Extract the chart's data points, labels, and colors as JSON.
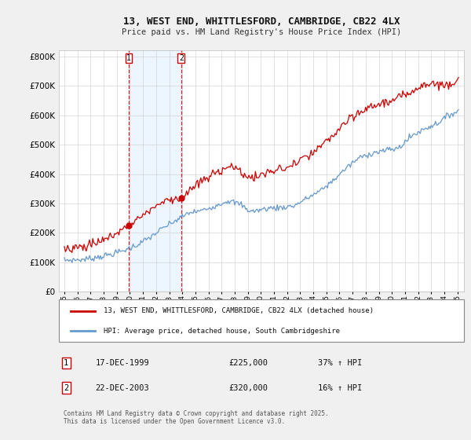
{
  "title": "13, WEST END, WHITTLESFORD, CAMBRIDGE, CB22 4LX",
  "subtitle": "Price paid vs. HM Land Registry's House Price Index (HPI)",
  "ytick_values": [
    0,
    100000,
    200000,
    300000,
    400000,
    500000,
    600000,
    700000,
    800000
  ],
  "ylim": [
    0,
    820000
  ],
  "background_color": "#f0f0f0",
  "plot_bg_color": "#ffffff",
  "red_color": "#cc0000",
  "blue_color": "#6699cc",
  "sale1_date": "17-DEC-1999",
  "sale1_price": "£225,000",
  "sale1_hpi": "37% ↑ HPI",
  "sale2_date": "22-DEC-2003",
  "sale2_price": "£320,000",
  "sale2_hpi": "16% ↑ HPI",
  "legend1": "13, WEST END, WHITTLESFORD, CAMBRIDGE, CB22 4LX (detached house)",
  "legend2": "HPI: Average price, detached house, South Cambridgeshire",
  "footer": "Contains HM Land Registry data © Crown copyright and database right 2025.\nThis data is licensed under the Open Government Licence v3.0.",
  "shade_color": "#ddeeff",
  "shade_alpha": 0.5
}
